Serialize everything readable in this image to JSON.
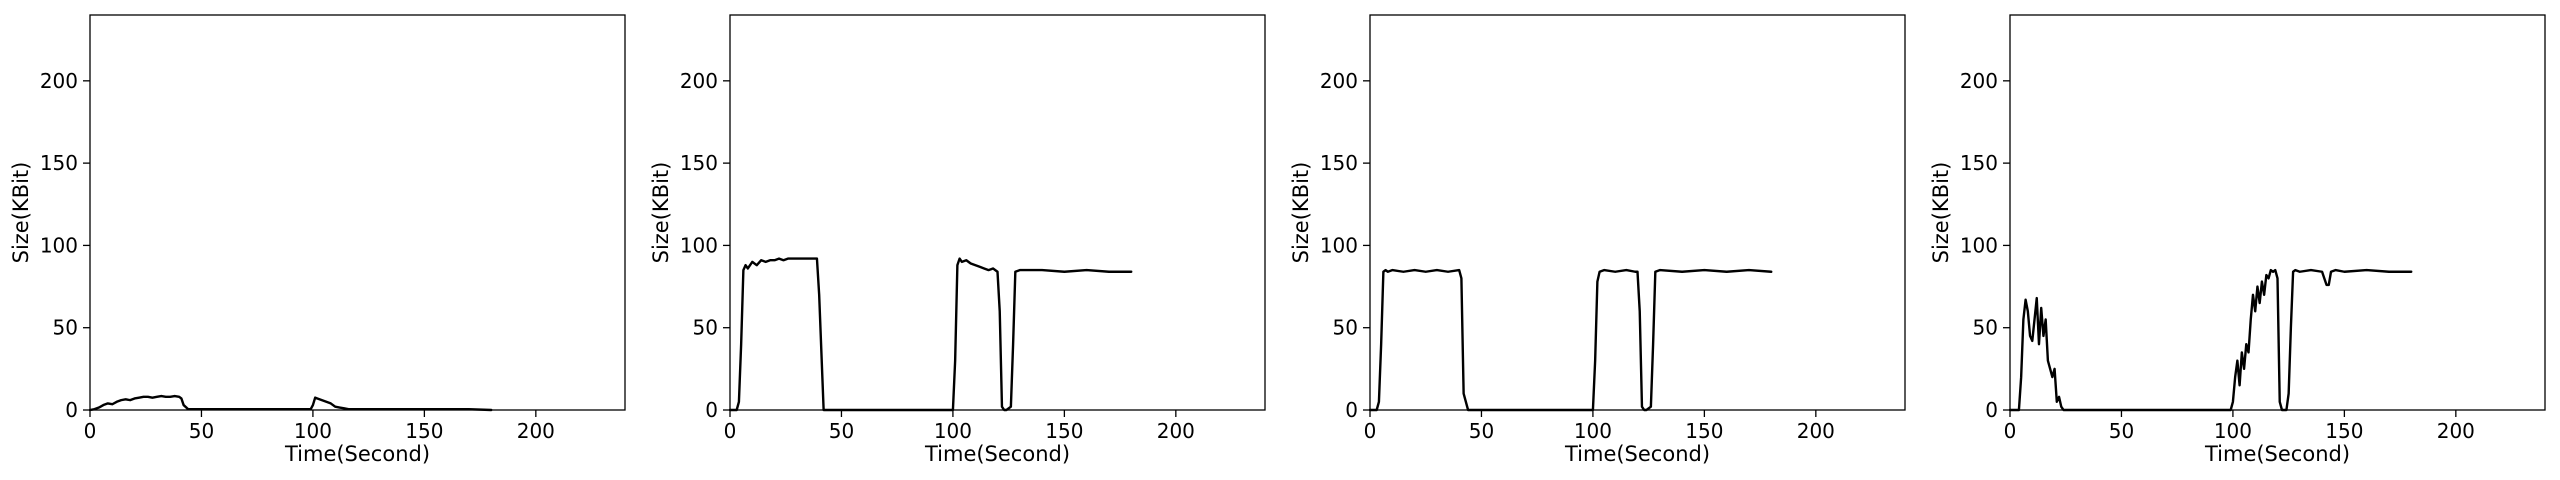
{
  "chart_data": [
    {
      "type": "line",
      "xlabel": "Time(Second)",
      "ylabel": "Size(KBit)",
      "xlim": [
        0,
        240
      ],
      "ylim": [
        0,
        240
      ],
      "xticks": [
        0,
        50,
        100,
        150,
        200
      ],
      "yticks": [
        0,
        50,
        100,
        150,
        200
      ],
      "xtick_labels": [
        "0",
        "50",
        "100",
        "150",
        "200"
      ],
      "ytick_labels": [
        "0",
        "50",
        "100",
        "150",
        "200"
      ],
      "grid": false,
      "series": [
        {
          "x": [
            0,
            2,
            4,
            6,
            8,
            10,
            12,
            14,
            16,
            18,
            20,
            22,
            24,
            26,
            28,
            30,
            32,
            34,
            36,
            38,
            40,
            41,
            42,
            44,
            50,
            60,
            80,
            99,
            100,
            101,
            102,
            104,
            106,
            108,
            110,
            112,
            114,
            116,
            120,
            130,
            150,
            170,
            180
          ],
          "y": [
            0,
            0.5,
            1.5,
            3,
            4,
            3.5,
            5,
            6,
            6.5,
            6,
            7,
            7.5,
            8,
            8,
            7.5,
            8,
            8.5,
            8,
            8,
            8.5,
            8,
            7,
            3,
            0.5,
            0.5,
            0.5,
            0.5,
            0.5,
            3,
            7.5,
            7,
            6,
            5,
            4,
            2,
            1.5,
            1,
            0.5,
            0.5,
            0.5,
            0.5,
            0.5,
            0
          ]
        }
      ]
    },
    {
      "type": "line",
      "xlabel": "Time(Second)",
      "ylabel": "Size(KBit)",
      "xlim": [
        0,
        240
      ],
      "ylim": [
        0,
        240
      ],
      "xticks": [
        0,
        50,
        100,
        150,
        200
      ],
      "yticks": [
        0,
        50,
        100,
        150,
        200
      ],
      "xtick_labels": [
        "0",
        "50",
        "100",
        "150",
        "200"
      ],
      "ytick_labels": [
        "0",
        "50",
        "100",
        "150",
        "200"
      ],
      "grid": false,
      "series": [
        {
          "x": [
            0,
            3,
            4,
            5,
            6,
            7,
            8,
            10,
            12,
            14,
            16,
            18,
            20,
            22,
            24,
            26,
            28,
            30,
            35,
            39,
            40,
            42,
            44,
            46,
            60,
            80,
            100,
            101,
            102,
            103,
            104,
            106,
            108,
            110,
            112,
            114,
            116,
            118,
            119,
            120,
            121,
            122,
            123,
            124,
            125,
            126,
            127,
            128,
            130,
            140,
            150,
            160,
            170,
            180
          ],
          "y": [
            0,
            0,
            5,
            40,
            85,
            88,
            86,
            90,
            88,
            91,
            90,
            91,
            91,
            92,
            91,
            92,
            92,
            92,
            92,
            92,
            70,
            0,
            0,
            0,
            0,
            0,
            0,
            30,
            88,
            92,
            90,
            91,
            89,
            88,
            87,
            86,
            85,
            86,
            85,
            84,
            60,
            2,
            0,
            0,
            1,
            2,
            40,
            84,
            85,
            85,
            84,
            85,
            84,
            84
          ]
        }
      ]
    },
    {
      "type": "line",
      "xlabel": "Time(Second)",
      "ylabel": "Size(KBit)",
      "xlim": [
        0,
        240
      ],
      "ylim": [
        0,
        240
      ],
      "xticks": [
        0,
        50,
        100,
        150,
        200
      ],
      "yticks": [
        0,
        50,
        100,
        150,
        200
      ],
      "xtick_labels": [
        "0",
        "50",
        "100",
        "150",
        "200"
      ],
      "ytick_labels": [
        "0",
        "50",
        "100",
        "150",
        "200"
      ],
      "grid": false,
      "series": [
        {
          "x": [
            0,
            3,
            4,
            5,
            6,
            7,
            8,
            10,
            15,
            20,
            25,
            30,
            35,
            40,
            41,
            42,
            44,
            46,
            60,
            80,
            100,
            101,
            102,
            103,
            105,
            110,
            115,
            119,
            120,
            121,
            122,
            123,
            124,
            125,
            126,
            127,
            128,
            130,
            140,
            150,
            160,
            170,
            180
          ],
          "y": [
            0,
            0,
            5,
            40,
            84,
            85,
            84,
            85,
            84,
            85,
            84,
            85,
            84,
            85,
            80,
            10,
            0,
            0,
            0,
            0,
            0,
            30,
            78,
            84,
            85,
            84,
            85,
            84,
            84,
            60,
            2,
            0,
            0,
            1,
            2,
            40,
            84,
            85,
            84,
            85,
            84,
            85,
            84
          ]
        }
      ]
    },
    {
      "type": "line",
      "xlabel": "Time(Second)",
      "ylabel": "Size(KBit)",
      "xlim": [
        0,
        240
      ],
      "ylim": [
        0,
        240
      ],
      "xticks": [
        0,
        50,
        100,
        150,
        200
      ],
      "yticks": [
        0,
        50,
        100,
        150,
        200
      ],
      "xtick_labels": [
        "0",
        "50",
        "100",
        "150",
        "200"
      ],
      "ytick_labels": [
        "0",
        "50",
        "100",
        "150",
        "200"
      ],
      "grid": false,
      "series": [
        {
          "x": [
            0,
            4,
            5,
            6,
            7,
            8,
            9,
            10,
            11,
            12,
            13,
            14,
            15,
            16,
            17,
            18,
            19,
            20,
            21,
            22,
            23,
            24,
            26,
            40,
            60,
            80,
            99,
            100,
            101,
            102,
            103,
            104,
            105,
            106,
            107,
            108,
            109,
            110,
            111,
            112,
            113,
            114,
            115,
            116,
            117,
            118,
            119,
            120,
            121,
            122,
            123,
            124,
            125,
            126,
            127,
            128,
            130,
            135,
            140,
            141,
            142,
            143,
            144,
            146,
            150,
            160,
            170,
            180
          ],
          "y": [
            0,
            0,
            20,
            55,
            67,
            60,
            45,
            42,
            55,
            68,
            40,
            62,
            45,
            55,
            30,
            25,
            20,
            25,
            5,
            8,
            2,
            0,
            0,
            0,
            0,
            0,
            0,
            5,
            20,
            30,
            15,
            35,
            25,
            40,
            35,
            55,
            70,
            60,
            75,
            65,
            78,
            70,
            82,
            80,
            85,
            84,
            85,
            80,
            5,
            0,
            0,
            0,
            10,
            50,
            84,
            85,
            84,
            85,
            84,
            80,
            76,
            76,
            84,
            85,
            84,
            85,
            84,
            84
          ]
        }
      ]
    }
  ]
}
